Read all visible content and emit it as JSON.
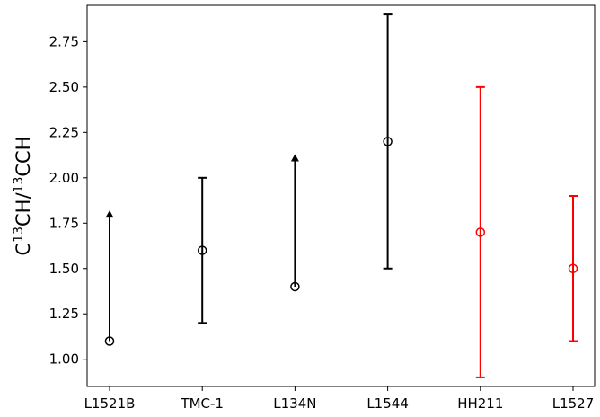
{
  "chart_data": {
    "type": "errorbar",
    "categories": [
      "L1521B",
      "TMC-1",
      "L134N",
      "L1544",
      "HH211",
      "L1527"
    ],
    "ylabel": {
      "parts": [
        {
          "text": "C",
          "sup": false
        },
        {
          "text": "13",
          "sup": true
        },
        {
          "text": "CH/",
          "sup": false
        },
        {
          "text": "13",
          "sup": true
        },
        {
          "text": "CCH",
          "sup": false
        }
      ]
    },
    "ylim": [
      0.85,
      2.95
    ],
    "y_ticks": [
      1.0,
      1.25,
      1.5,
      1.75,
      2.0,
      2.25,
      2.5,
      2.75
    ],
    "y_tick_labels": [
      "1.00",
      "1.25",
      "1.50",
      "1.75",
      "2.00",
      "2.25",
      "2.50",
      "2.75"
    ],
    "points": [
      {
        "category": "L1521B",
        "value": 1.1,
        "lower_limit_to": 1.82,
        "kind": "lower-limit",
        "color": "#000000"
      },
      {
        "category": "TMC-1",
        "value": 1.6,
        "err_low": 1.2,
        "err_high": 2.0,
        "kind": "errorbar",
        "color": "#000000"
      },
      {
        "category": "L134N",
        "value": 1.4,
        "lower_limit_to": 2.13,
        "kind": "lower-limit",
        "color": "#000000"
      },
      {
        "category": "L1544",
        "value": 2.2,
        "err_low": 1.5,
        "err_high": 2.9,
        "kind": "errorbar",
        "color": "#000000"
      },
      {
        "category": "HH211",
        "value": 1.7,
        "err_low": 0.9,
        "err_high": 2.5,
        "kind": "errorbar",
        "color": "#ff0000"
      },
      {
        "category": "L1527",
        "value": 1.5,
        "err_low": 1.1,
        "err_high": 1.9,
        "kind": "errorbar",
        "color": "#ff0000"
      }
    ],
    "grid": false,
    "legend": "none"
  }
}
